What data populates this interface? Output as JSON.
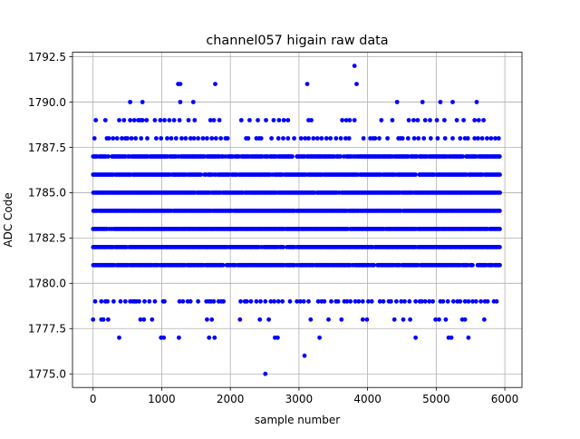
{
  "chart_data": {
    "type": "scatter",
    "title": "channel057 higain raw data",
    "xlabel": "sample number",
    "ylabel": "ADC Code",
    "xlim": [
      -300,
      6250
    ],
    "ylim": [
      1774.25,
      1792.75
    ],
    "x_ticks": [
      0,
      1000,
      2000,
      3000,
      4000,
      5000,
      6000
    ],
    "y_ticks": [
      1775.0,
      1777.5,
      1780.0,
      1782.5,
      1785.0,
      1787.5,
      1790.0,
      1792.5
    ],
    "x_tick_labels": [
      "0",
      "1000",
      "2000",
      "3000",
      "4000",
      "5000",
      "6000"
    ],
    "y_tick_labels": [
      "1775.0",
      "1777.5",
      "1780.0",
      "1782.5",
      "1785.0",
      "1787.5",
      "1790.0",
      "1792.5"
    ],
    "grid": true,
    "marker_color": "#0000ff",
    "series": [
      {
        "dense_levels": {
          "x_range": [
            0,
            5930
          ],
          "values": [
            1781,
            1782,
            1783,
            1784,
            1785,
            1786,
            1787
          ],
          "density": [
            0.92,
            0.95,
            0.97,
            0.98,
            0.97,
            0.93,
            0.88
          ]
        },
        "level_1788_x": [
          20,
          200,
          230,
          290,
          350,
          420,
          470,
          500,
          560,
          620,
          700,
          790,
          920,
          990,
          1080,
          1140,
          1210,
          1290,
          1350,
          1420,
          1470,
          1530,
          1600,
          1660,
          1730,
          1790,
          1860,
          1930,
          1960,
          2230,
          2260,
          2380,
          2420,
          2450,
          2600,
          2700,
          2770,
          2840,
          2930,
          3030,
          3090,
          3140,
          3210,
          3270,
          3330,
          3400,
          3460,
          3540,
          3610,
          3680,
          3730,
          3940,
          4040,
          4080,
          4110,
          4170,
          4290,
          4450,
          4480,
          4510,
          4590,
          4680,
          4740,
          4820,
          4920,
          5020,
          5130,
          5240,
          5350,
          5420,
          5460,
          5560,
          5610,
          5670,
          5740,
          5800,
          5860,
          5910
        ],
        "level_1789_x": [
          40,
          180,
          380,
          450,
          540,
          600,
          660,
          690,
          720,
          780,
          900,
          980,
          1040,
          1110,
          1180,
          1260,
          1390,
          1480,
          1710,
          1760,
          1840,
          2160,
          2280,
          2400,
          2520,
          2630,
          2710,
          2780,
          2840,
          3140,
          3180,
          3630,
          3690,
          3740,
          3810,
          4200,
          4360,
          4600,
          4670,
          4730,
          4840,
          4910,
          5010,
          5120,
          5300,
          5400,
          5560,
          5620,
          5690
        ],
        "level_1779_x": [
          30,
          120,
          180,
          210,
          300,
          400,
          470,
          540,
          580,
          610,
          630,
          670,
          750,
          820,
          900,
          1020,
          1040,
          1260,
          1310,
          1380,
          1420,
          1530,
          1650,
          1690,
          1720,
          1760,
          1830,
          1870,
          1900,
          2150,
          2210,
          2240,
          2300,
          2380,
          2440,
          2510,
          2590,
          2640,
          2700,
          2760,
          2870,
          2970,
          3020,
          3070,
          3140,
          3280,
          3330,
          3370,
          3470,
          3540,
          3570,
          3660,
          3700,
          3750,
          3820,
          3870,
          3930,
          4010,
          4060,
          4180,
          4230,
          4310,
          4340,
          4420,
          4490,
          4540,
          4610,
          4700,
          4760,
          4790,
          4840,
          4900,
          4950,
          5060,
          5100,
          5170,
          5250,
          5310,
          5350,
          5420,
          5470,
          5530,
          5580,
          5650,
          5710,
          5750,
          5840,
          5880
        ],
        "level_1778_x": [
          0,
          120,
          150,
          220,
          690,
          740,
          860,
          1660,
          1730,
          2140,
          2430,
          2560,
          3170,
          3430,
          3620,
          3930,
          3990,
          4390,
          4520,
          4620,
          4990,
          5040,
          5140,
          5380,
          5420,
          5700
        ],
        "outliers": [
          {
            "x": 380,
            "y": 1777
          },
          {
            "x": 990,
            "y": 1777
          },
          {
            "x": 1030,
            "y": 1777
          },
          {
            "x": 1250,
            "y": 1777
          },
          {
            "x": 1690,
            "y": 1777
          },
          {
            "x": 1770,
            "y": 1777
          },
          {
            "x": 2650,
            "y": 1777
          },
          {
            "x": 2690,
            "y": 1777
          },
          {
            "x": 3300,
            "y": 1777
          },
          {
            "x": 4700,
            "y": 1777
          },
          {
            "x": 5180,
            "y": 1777
          },
          {
            "x": 5220,
            "y": 1777
          },
          {
            "x": 5470,
            "y": 1777
          },
          {
            "x": 2510,
            "y": 1775
          },
          {
            "x": 3080,
            "y": 1776
          },
          {
            "x": 540,
            "y": 1790
          },
          {
            "x": 720,
            "y": 1790
          },
          {
            "x": 1270,
            "y": 1790
          },
          {
            "x": 1460,
            "y": 1790
          },
          {
            "x": 4430,
            "y": 1790
          },
          {
            "x": 4800,
            "y": 1790
          },
          {
            "x": 5060,
            "y": 1790
          },
          {
            "x": 5240,
            "y": 1790
          },
          {
            "x": 5590,
            "y": 1790
          },
          {
            "x": 1240,
            "y": 1791
          },
          {
            "x": 1270,
            "y": 1791
          },
          {
            "x": 1780,
            "y": 1791
          },
          {
            "x": 3120,
            "y": 1791
          },
          {
            "x": 3840,
            "y": 1791
          },
          {
            "x": 3810,
            "y": 1792
          }
        ]
      }
    ]
  }
}
